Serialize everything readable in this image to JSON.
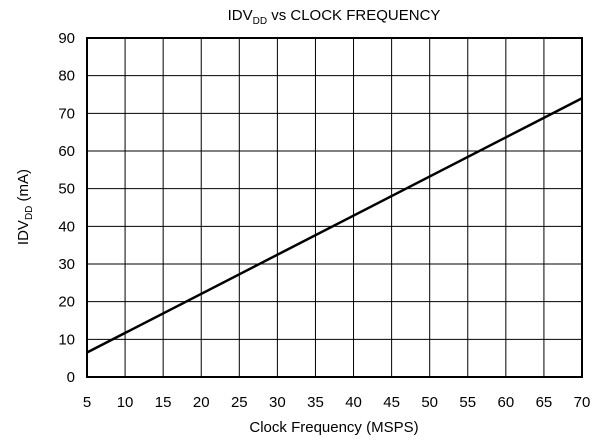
{
  "chart_data": {
    "type": "line",
    "title": {
      "main": "IDV",
      "sub": "DD",
      "rest": " vs CLOCK FREQUENCY"
    },
    "x_label": "Clock Frequency (MSPS)",
    "y_label": {
      "main": "IDV",
      "sub": "DD",
      "rest": " (mA)"
    },
    "x": [
      5,
      70
    ],
    "series": [
      {
        "name": "IDVDD",
        "color": "#000000",
        "values": [
          6.5,
          74
        ]
      }
    ],
    "xlim": [
      5,
      70
    ],
    "xticks": [
      5,
      10,
      15,
      20,
      25,
      30,
      35,
      40,
      45,
      50,
      55,
      60,
      65,
      70
    ],
    "ylim": [
      0,
      90
    ],
    "yticks": [
      0,
      10,
      20,
      30,
      40,
      50,
      60,
      70,
      80,
      90
    ],
    "grid": true
  }
}
